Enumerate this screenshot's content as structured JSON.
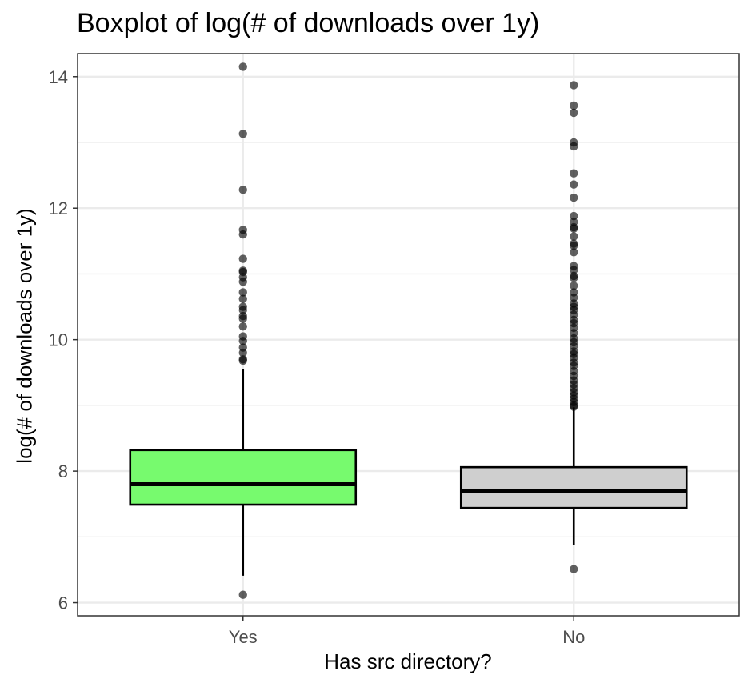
{
  "chart_data": {
    "type": "box",
    "title": "Boxplot of log(# of downloads over 1y)",
    "xlabel": "Has src directory?",
    "ylabel": "log(# of downloads over 1y)",
    "ylim": [
      5.8,
      14.35
    ],
    "yticks": [
      6,
      8,
      10,
      12,
      14
    ],
    "grid": true,
    "colors": {
      "Yes": "#77FA6E",
      "No": "#CFCFCF",
      "outlier": "#000000",
      "grid": "#EBEBEB"
    },
    "categories": [
      "Yes",
      "No"
    ],
    "boxes": [
      {
        "category": "Yes",
        "whisker_low": 6.41,
        "q1": 7.49,
        "median": 7.8,
        "q3": 8.32,
        "whisker_high": 9.55,
        "outliers": [
          14.15,
          13.13,
          12.28,
          11.67,
          11.6,
          11.23,
          11.05,
          11.03,
          10.95,
          10.88,
          10.72,
          10.62,
          10.5,
          10.45,
          10.36,
          10.32,
          10.2,
          10.05,
          9.98,
          9.88,
          9.8,
          9.7,
          9.68,
          6.12
        ]
      },
      {
        "category": "No",
        "whisker_low": 6.88,
        "q1": 7.44,
        "median": 7.7,
        "q3": 8.06,
        "whisker_high": 8.97,
        "outliers": [
          13.87,
          13.56,
          13.45,
          13.0,
          12.94,
          12.53,
          12.36,
          12.16,
          11.88,
          11.79,
          11.71,
          11.69,
          11.57,
          11.46,
          11.43,
          11.33,
          11.12,
          11.06,
          10.97,
          10.94,
          10.82,
          10.72,
          10.64,
          10.55,
          10.5,
          10.45,
          10.38,
          10.3,
          10.25,
          10.18,
          10.1,
          10.02,
          9.96,
          9.9,
          9.82,
          9.78,
          9.72,
          9.65,
          9.6,
          9.52,
          9.45,
          9.38,
          9.32,
          9.26,
          9.2,
          9.15,
          9.1,
          9.05,
          9.0,
          8.98,
          6.51
        ]
      }
    ]
  }
}
